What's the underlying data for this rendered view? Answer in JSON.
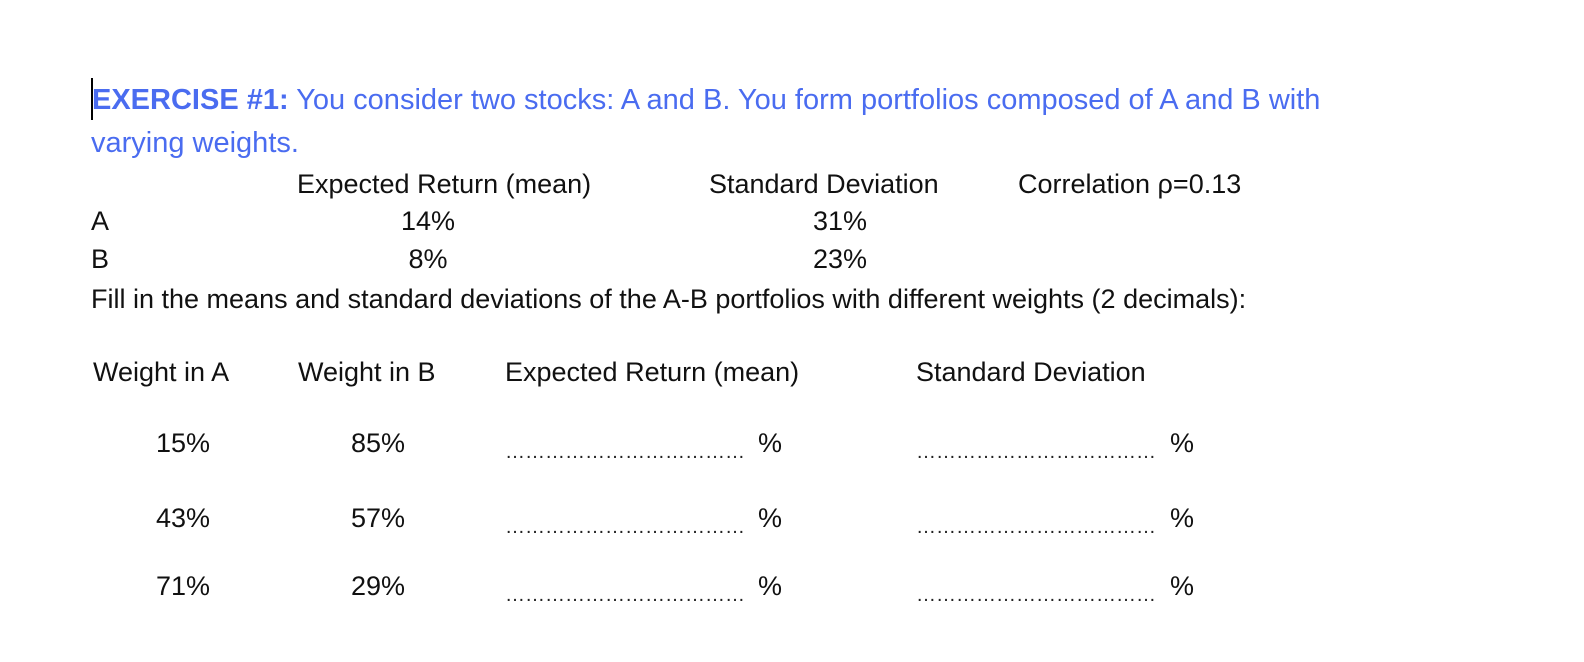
{
  "exercise": {
    "label": "EXERCISE #1:",
    "text_line1": "You consider two stocks: A and B. You form portfolios composed of A and B with",
    "text_line2": "varying weights."
  },
  "stocks_table": {
    "headers": {
      "expected_return": "Expected Return (mean)",
      "std_dev": "Standard Deviation",
      "correlation": "Correlation ρ=0.13"
    },
    "rows": [
      {
        "name": "A",
        "expected_return": "14%",
        "std_dev": "31%"
      },
      {
        "name": "B",
        "expected_return": "8%",
        "std_dev": "23%"
      }
    ]
  },
  "instruction": "Fill in the means and standard deviations of the A-B portfolios with different weights (2 decimals):",
  "portfolio_table": {
    "headers": {
      "weight_a": "Weight in A",
      "weight_b": "Weight in B",
      "expected_return": "Expected Return (mean)",
      "std_dev": "Standard Deviation"
    },
    "blank": "………………………………",
    "percent": "%",
    "rows": [
      {
        "weight_a": "15%",
        "weight_b": "85%"
      },
      {
        "weight_a": "43%",
        "weight_b": "57%"
      },
      {
        "weight_a": "71%",
        "weight_b": "29%"
      }
    ]
  }
}
